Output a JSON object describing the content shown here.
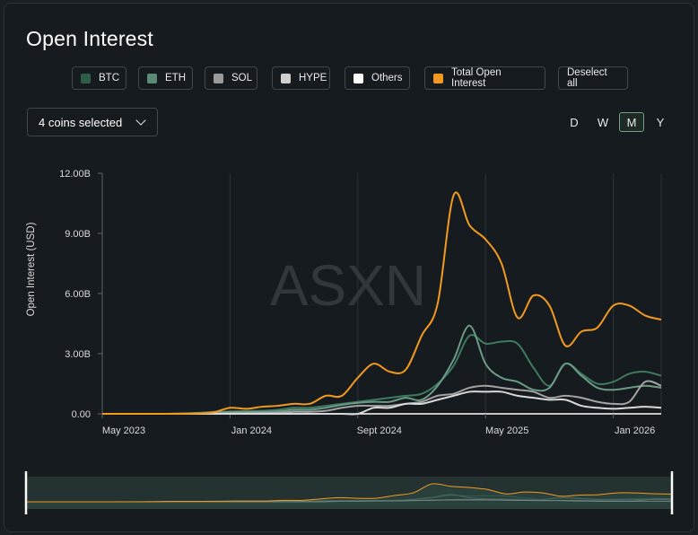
{
  "title": "Open Interest",
  "legend": [
    {
      "label": "BTC",
      "color": "#2f5d48"
    },
    {
      "label": "ETH",
      "color": "#5b8a77"
    },
    {
      "label": "SOL",
      "color": "#9a9a9a"
    },
    {
      "label": "HYPE",
      "color": "#cfcfcf"
    },
    {
      "label": "Others",
      "color": "#ffffff"
    },
    {
      "label": "Total Open Interest",
      "color": "#f39a1e"
    }
  ],
  "deselect_label": "Deselect all",
  "coins_selector": "4 coins selected",
  "timeframes": [
    "D",
    "W",
    "M",
    "Y"
  ],
  "active_timeframe": "M",
  "watermark": "ASXN",
  "chart_data": {
    "type": "line",
    "ylabel": "Open Interest (USD)",
    "xlabel": "",
    "ylim": [
      0,
      12
    ],
    "y_unit": "B",
    "y_ticks": [
      "0.00",
      "3.00B",
      "6.00B",
      "9.00B",
      "12.00B"
    ],
    "x_tick_labels": [
      "May 2023",
      "Jan 2024",
      "Sept 2024",
      "May 2025",
      "Jan 2026"
    ],
    "x": [
      "2023-05",
      "2023-06",
      "2023-07",
      "2023-08",
      "2023-09",
      "2023-10",
      "2023-11",
      "2023-12",
      "2024-01",
      "2024-02",
      "2024-03",
      "2024-04",
      "2024-05",
      "2024-06",
      "2024-07",
      "2024-08",
      "2024-09",
      "2024-10",
      "2024-11",
      "2024-12",
      "2025-01",
      "2025-02",
      "2025-03",
      "2025-04",
      "2025-05",
      "2025-06",
      "2025-07",
      "2025-08",
      "2025-09",
      "2025-10",
      "2025-11",
      "2025-12",
      "2026-01",
      "2026-02",
      "2026-03",
      "2026-04"
    ],
    "series": [
      {
        "name": "BTC",
        "color": "#3e7a5f",
        "values": [
          0,
          0,
          0,
          0,
          0,
          0.02,
          0.05,
          0.1,
          0.12,
          0.14,
          0.15,
          0.2,
          0.3,
          0.3,
          0.4,
          0.5,
          0.6,
          0.7,
          0.8,
          0.9,
          1.0,
          1.5,
          2.4,
          3.9,
          3.5,
          3.6,
          3.5,
          2.3,
          1.4,
          2.5,
          2.0,
          1.5,
          1.6,
          2.0,
          2.1,
          1.9
        ]
      },
      {
        "name": "ETH",
        "color": "#6c9a86",
        "values": [
          0,
          0,
          0,
          0,
          0,
          0.01,
          0.02,
          0.05,
          0.08,
          0.09,
          0.1,
          0.12,
          0.2,
          0.2,
          0.3,
          0.45,
          0.55,
          0.6,
          0.6,
          0.8,
          0.7,
          1.4,
          2.7,
          4.4,
          2.5,
          1.8,
          1.6,
          1.2,
          1.3,
          2.5,
          1.9,
          1.3,
          1.2,
          1.3,
          1.4,
          1.3
        ]
      },
      {
        "name": "SOL",
        "color": "#a3a3a3",
        "values": [
          0,
          0,
          0,
          0,
          0,
          0,
          0.01,
          0.02,
          0.03,
          0.03,
          0.04,
          0.05,
          0.1,
          0.1,
          0.15,
          0.3,
          0.4,
          0.4,
          0.4,
          0.5,
          0.6,
          0.9,
          1.0,
          1.3,
          1.4,
          1.3,
          1.2,
          1.1,
          0.8,
          0.9,
          0.8,
          0.6,
          0.5,
          0.6,
          1.6,
          1.4
        ]
      },
      {
        "name": "HYPE",
        "color": "#d9d9d9",
        "values": [
          0,
          0,
          0,
          0,
          0,
          0,
          0,
          0,
          0,
          0,
          0,
          0,
          0,
          0,
          0,
          0,
          0,
          0.3,
          0.3,
          0.5,
          0.5,
          0.7,
          0.9,
          1.1,
          1.1,
          1.1,
          0.9,
          0.8,
          0.7,
          0.7,
          0.4,
          0.3,
          0.25,
          0.3,
          0.35,
          0.3
        ]
      },
      {
        "name": "Total Open Interest",
        "color": "#f39a1e",
        "values": [
          0,
          0,
          0,
          0,
          0,
          0,
          0.02,
          0.08,
          0.3,
          0.25,
          0.35,
          0.4,
          0.5,
          0.5,
          0.9,
          0.9,
          1.8,
          2.5,
          2.1,
          2.2,
          3.9,
          5.5,
          10.9,
          9.4,
          8.7,
          7.5,
          4.8,
          5.9,
          5.4,
          3.4,
          4.1,
          4.3,
          5.4,
          5.4,
          4.9,
          4.7
        ]
      }
    ],
    "grid_x": true,
    "grid_y": false,
    "has_navigator": true
  }
}
